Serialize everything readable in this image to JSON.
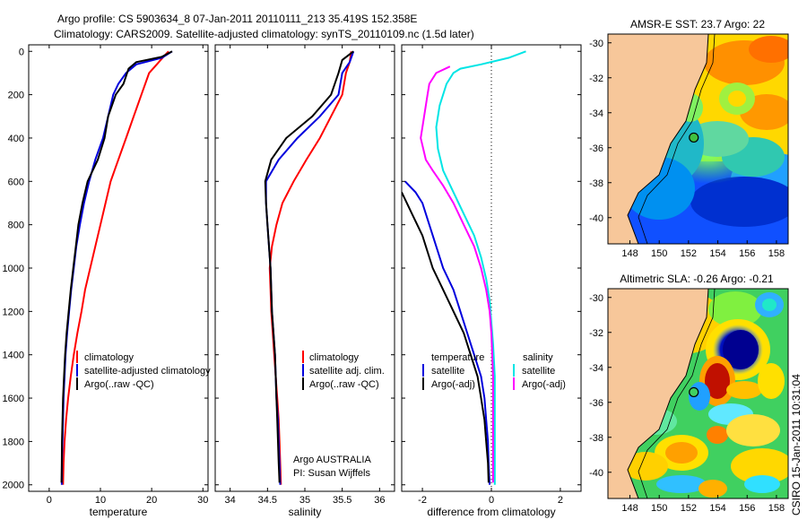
{
  "header": {
    "line1": "Argo profile: CS 5903634_8 07-Jan-2011 20110111_213 35.419S 152.358E",
    "line2": "Climatology: CARS2009. Satellite-adjusted climatology: synTS_20110109.nc (1.5d later)"
  },
  "colors": {
    "climatology": "#ff0000",
    "satellite": "#0000dd",
    "argo": "#000000",
    "sat_salinity": "#00e5e5",
    "argo_salinity": "#ff00ff",
    "land": "#f7c79a"
  },
  "side_text": "CSIRO 15-Jan-2011 10:31:04",
  "chart_data": [
    {
      "type": "line",
      "id": "temperature",
      "xlabel": "temperature",
      "ylabel": "",
      "xlim": [
        -4,
        31
      ],
      "ylim": [
        2000,
        0
      ],
      "x_ticks": [
        "0",
        "10",
        "20",
        "30"
      ],
      "y_ticks": [
        "0",
        "200",
        "400",
        "600",
        "800",
        "1000",
        "1200",
        "1400",
        "1600",
        "1800",
        "2000"
      ],
      "legend": [
        "climatology",
        "satellite-adjusted climatology",
        "Argo(..raw -QC)"
      ],
      "series": [
        {
          "name": "climatology",
          "color_key": "climatology",
          "points": [
            [
              23.3,
              0
            ],
            [
              22.5,
              20
            ],
            [
              21,
              60
            ],
            [
              19.5,
              100
            ],
            [
              18,
              200
            ],
            [
              16.5,
              300
            ],
            [
              15,
              400
            ],
            [
              13.5,
              500
            ],
            [
              12,
              600
            ],
            [
              11,
              700
            ],
            [
              10,
              800
            ],
            [
              9,
              900
            ],
            [
              8,
              1000
            ],
            [
              7,
              1100
            ],
            [
              6.3,
              1200
            ],
            [
              5.5,
              1300
            ],
            [
              4.8,
              1400
            ],
            [
              4.2,
              1500
            ],
            [
              3.7,
              1600
            ],
            [
              3.3,
              1700
            ],
            [
              3,
              1800
            ],
            [
              2.8,
              1900
            ],
            [
              2.7,
              2000
            ]
          ]
        },
        {
          "name": "satellite-adjusted climatology",
          "color_key": "satellite",
          "points": [
            [
              24,
              0
            ],
            [
              22,
              30
            ],
            [
              17,
              60
            ],
            [
              15,
              100
            ],
            [
              13.5,
              150
            ],
            [
              12.5,
              200
            ],
            [
              11.5,
              300
            ],
            [
              10.5,
              400
            ],
            [
              9,
              500
            ],
            [
              7.8,
              600
            ],
            [
              6.8,
              700
            ],
            [
              6,
              800
            ],
            [
              5.3,
              900
            ],
            [
              4.8,
              1000
            ],
            [
              4.3,
              1100
            ],
            [
              3.9,
              1200
            ],
            [
              3.5,
              1300
            ],
            [
              3.2,
              1400
            ],
            [
              3,
              1500
            ],
            [
              2.8,
              1600
            ],
            [
              2.7,
              1700
            ],
            [
              2.6,
              1800
            ],
            [
              2.5,
              1900
            ],
            [
              2.45,
              2000
            ]
          ]
        },
        {
          "name": "Argo(..raw -QC)",
          "color_key": "argo",
          "points": [
            [
              24,
              0
            ],
            [
              22,
              25
            ],
            [
              17,
              50
            ],
            [
              15.5,
              80
            ],
            [
              14.5,
              150
            ],
            [
              13,
              200
            ],
            [
              11.5,
              300
            ],
            [
              10.8,
              400
            ],
            [
              9.5,
              500
            ],
            [
              8.5,
              550
            ],
            [
              7.5,
              600
            ],
            [
              6.5,
              700
            ],
            [
              5.7,
              800
            ],
            [
              5.2,
              900
            ],
            [
              4.7,
              1000
            ],
            [
              4.2,
              1100
            ],
            [
              3.8,
              1200
            ],
            [
              3.4,
              1300
            ],
            [
              3.1,
              1400
            ],
            [
              2.9,
              1500
            ],
            [
              2.7,
              1600
            ],
            [
              2.6,
              1700
            ],
            [
              2.5,
              1800
            ],
            [
              2.45,
              1900
            ],
            [
              2.4,
              1990
            ]
          ]
        }
      ]
    },
    {
      "type": "line",
      "id": "salinity",
      "xlabel": "salinity",
      "xlim": [
        33.8,
        36.2
      ],
      "ylim": [
        2000,
        0
      ],
      "x_ticks": [
        "34",
        "34.5",
        "35",
        "35.5",
        "36"
      ],
      "legend": [
        "climatology",
        "satellite adj. clim.",
        "Argo(..raw -QC)"
      ],
      "annotation": [
        "Argo AUSTRALIA",
        "PI: Susan Wijffels"
      ],
      "series": [
        {
          "name": "climatology",
          "color_key": "climatology",
          "points": [
            [
              35.62,
              0
            ],
            [
              35.6,
              50
            ],
            [
              35.55,
              100
            ],
            [
              35.5,
              200
            ],
            [
              35.35,
              300
            ],
            [
              35.2,
              400
            ],
            [
              35.02,
              500
            ],
            [
              34.85,
              600
            ],
            [
              34.7,
              700
            ],
            [
              34.62,
              800
            ],
            [
              34.56,
              900
            ],
            [
              34.53,
              1000
            ],
            [
              34.54,
              1100
            ],
            [
              34.55,
              1200
            ],
            [
              34.57,
              1300
            ],
            [
              34.59,
              1400
            ],
            [
              34.61,
              1500
            ],
            [
              34.63,
              1600
            ],
            [
              34.65,
              1700
            ],
            [
              34.66,
              1800
            ],
            [
              34.67,
              1900
            ],
            [
              34.68,
              2000
            ]
          ]
        },
        {
          "name": "satellite adj. clim.",
          "color_key": "satellite",
          "points": [
            [
              35.65,
              0
            ],
            [
              35.6,
              50
            ],
            [
              35.5,
              100
            ],
            [
              35.45,
              200
            ],
            [
              35.2,
              300
            ],
            [
              34.9,
              400
            ],
            [
              34.65,
              500
            ],
            [
              34.48,
              600
            ],
            [
              34.48,
              700
            ],
            [
              34.5,
              800
            ],
            [
              34.52,
              900
            ],
            [
              34.54,
              1000
            ],
            [
              34.55,
              1100
            ],
            [
              34.56,
              1200
            ],
            [
              34.58,
              1300
            ],
            [
              34.6,
              1400
            ],
            [
              34.61,
              1500
            ],
            [
              34.62,
              1600
            ],
            [
              34.64,
              1700
            ],
            [
              34.65,
              1800
            ],
            [
              34.66,
              1900
            ],
            [
              34.67,
              2000
            ]
          ]
        },
        {
          "name": "Argo(..raw -QC)",
          "color_key": "argo",
          "points": [
            [
              35.65,
              0
            ],
            [
              35.5,
              40
            ],
            [
              35.45,
              100
            ],
            [
              35.35,
              200
            ],
            [
              35.1,
              300
            ],
            [
              34.75,
              400
            ],
            [
              34.55,
              500
            ],
            [
              34.47,
              600
            ],
            [
              34.48,
              700
            ],
            [
              34.5,
              800
            ],
            [
              34.52,
              900
            ],
            [
              34.54,
              1000
            ],
            [
              34.55,
              1100
            ],
            [
              34.56,
              1200
            ],
            [
              34.58,
              1300
            ],
            [
              34.6,
              1400
            ],
            [
              34.61,
              1500
            ],
            [
              34.62,
              1600
            ],
            [
              34.63,
              1700
            ],
            [
              34.64,
              1800
            ],
            [
              34.65,
              1900
            ],
            [
              34.66,
              1990
            ]
          ]
        }
      ]
    },
    {
      "type": "line",
      "id": "difference",
      "xlabel": "difference from climatology",
      "xlim": [
        -2.6,
        2.6
      ],
      "ylim": [
        2000,
        0
      ],
      "x_ticks": [
        "-2",
        "0",
        "2"
      ],
      "legend_left": [
        "temperature",
        "satellite",
        "Argo(-adj)"
      ],
      "legend_right": [
        "salinity",
        "satellite",
        "Argo(-adj)"
      ],
      "zero_line": true,
      "series": [
        {
          "name": "temperature satellite",
          "color_key": "satellite",
          "points": [
            [
              -2.5,
              600
            ],
            [
              -2.2,
              650
            ],
            [
              -2,
              700
            ],
            [
              -1.8,
              800
            ],
            [
              -1.6,
              900
            ],
            [
              -1.4,
              1000
            ],
            [
              -1.1,
              1100
            ],
            [
              -0.9,
              1200
            ],
            [
              -0.7,
              1300
            ],
            [
              -0.5,
              1400
            ],
            [
              -0.3,
              1500
            ],
            [
              -0.2,
              1600
            ],
            [
              -0.15,
              1700
            ],
            [
              -0.1,
              1800
            ],
            [
              -0.08,
              1900
            ],
            [
              -0.05,
              2000
            ]
          ]
        },
        {
          "name": "temperature Argo(-adj)",
          "color_key": "argo",
          "points": [
            [
              -2.6,
              650
            ],
            [
              -2.3,
              750
            ],
            [
              -2,
              850
            ],
            [
              -1.7,
              1000
            ],
            [
              -1.4,
              1100
            ],
            [
              -1.1,
              1200
            ],
            [
              -0.8,
              1300
            ],
            [
              -0.6,
              1400
            ],
            [
              -0.4,
              1500
            ],
            [
              -0.3,
              1600
            ],
            [
              -0.2,
              1700
            ],
            [
              -0.15,
              1800
            ],
            [
              -0.1,
              1900
            ],
            [
              -0.08,
              1990
            ]
          ]
        },
        {
          "name": "salinity satellite",
          "color_key": "sat_salinity",
          "points": [
            [
              1,
              0
            ],
            [
              0.5,
              30
            ],
            [
              -0.3,
              60
            ],
            [
              -0.9,
              80
            ],
            [
              -1.1,
              100
            ],
            [
              -1.3,
              150
            ],
            [
              -1.5,
              250
            ],
            [
              -1.6,
              350
            ],
            [
              -1.55,
              450
            ],
            [
              -1.4,
              550
            ],
            [
              -1.1,
              650
            ],
            [
              -0.8,
              750
            ],
            [
              -0.5,
              850
            ],
            [
              -0.3,
              950
            ],
            [
              -0.15,
              1050
            ],
            [
              -0.05,
              1150
            ],
            [
              0,
              1250
            ],
            [
              0.05,
              1350
            ],
            [
              0.1,
              1500
            ],
            [
              0.1,
              1700
            ],
            [
              0.1,
              1900
            ],
            [
              0.1,
              2000
            ]
          ]
        },
        {
          "name": "salinity Argo(-adj)",
          "color_key": "argo_salinity",
          "points": [
            [
              -1.2,
              70
            ],
            [
              -1.6,
              100
            ],
            [
              -1.8,
              150
            ],
            [
              -1.85,
              200
            ],
            [
              -1.95,
              300
            ],
            [
              -2.05,
              400
            ],
            [
              -1.9,
              500
            ],
            [
              -1.7,
              550
            ],
            [
              -1.4,
              620
            ],
            [
              -1.1,
              700
            ],
            [
              -0.8,
              800
            ],
            [
              -0.5,
              900
            ],
            [
              -0.3,
              1000
            ],
            [
              -0.15,
              1100
            ],
            [
              -0.05,
              1200
            ],
            [
              0,
              1300
            ],
            [
              0.05,
              1500
            ],
            [
              0.05,
              1700
            ],
            [
              0.05,
              1900
            ],
            [
              0.05,
              1990
            ]
          ]
        }
      ]
    },
    {
      "type": "heatmap",
      "id": "sst-map",
      "title": "AMSR-E SST: 23.7 Argo: 22",
      "x_ticks": [
        "148",
        "150",
        "152",
        "154",
        "156",
        "158"
      ],
      "y_ticks": [
        "-30",
        "-32",
        "-34",
        "-36",
        "-38",
        "-40"
      ],
      "xlim": [
        146.5,
        158.8
      ],
      "ylim": [
        -41.5,
        -29.5
      ],
      "argo_position": [
        152.358,
        -35.419
      ]
    },
    {
      "type": "heatmap",
      "id": "sla-map",
      "title": "Altimetric SLA: -0.26 Argo: -0.21",
      "x_ticks": [
        "148",
        "150",
        "152",
        "154",
        "156",
        "158"
      ],
      "y_ticks": [
        "-30",
        "-32",
        "-34",
        "-36",
        "-38",
        "-40"
      ],
      "xlim": [
        146.5,
        158.8
      ],
      "ylim": [
        -41.5,
        -29.5
      ],
      "argo_position": [
        152.358,
        -35.419
      ]
    }
  ]
}
